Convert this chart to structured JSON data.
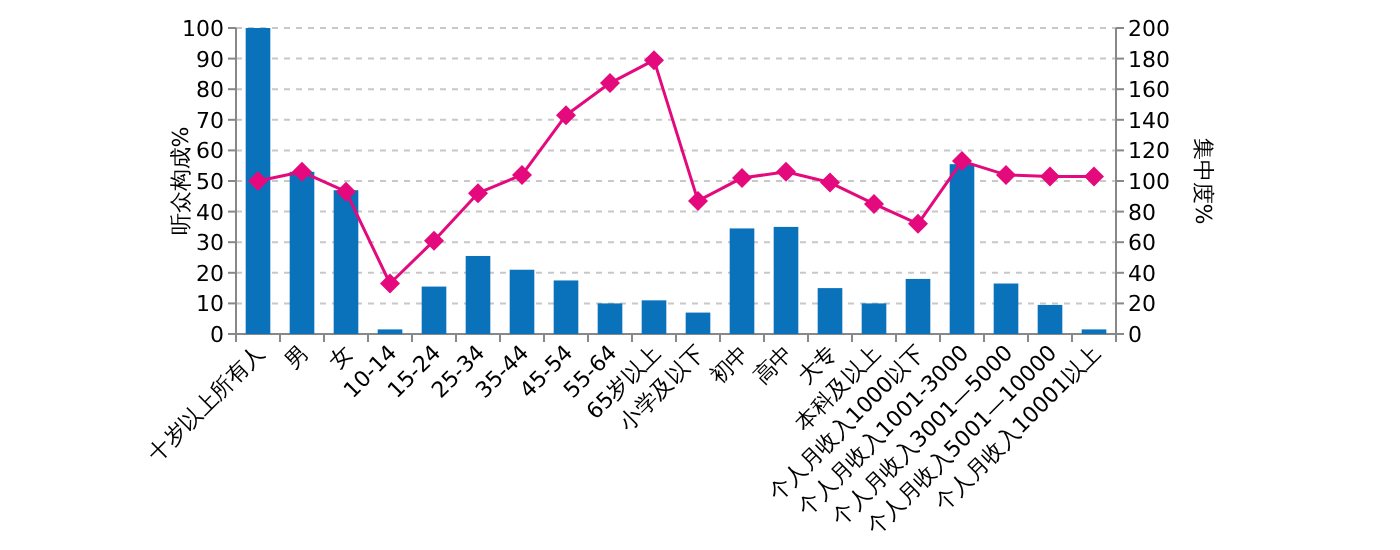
{
  "chart_data": {
    "type": "bar",
    "ylabel": "听众构成%",
    "y2label": "集中度%",
    "categories": [
      "十岁以上所有人",
      "男",
      "女",
      "10-14",
      "15-24",
      "25-34",
      "35-44",
      "45-54",
      "55-64",
      "65岁以上",
      "小学及以下",
      "初中",
      "高中",
      "大专",
      "本科及以上",
      "个人月收入1000以下",
      "个人月收入1001-3000",
      "个人月收入3001—5000",
      "个人月收入5001—10000",
      "个人月收入10001以上"
    ],
    "series": [
      {
        "color": "#0a72bb",
        "values": [
          100,
          53,
          47,
          1.5,
          15.5,
          25.5,
          21,
          17.5,
          10,
          11,
          7,
          34.5,
          35,
          15,
          10,
          18,
          55.5,
          16.5,
          9.5,
          1.5
        ]
      },
      {
        "type": "line",
        "axis": "y2",
        "color": "#e4097d",
        "marker": "diamond",
        "values": [
          100,
          106,
          93,
          33,
          61,
          92,
          104,
          143,
          164,
          179,
          87,
          102,
          106,
          99,
          85,
          72,
          113,
          104,
          103,
          103
        ]
      }
    ],
    "ylim": [
      0,
      100
    ],
    "yticks": [
      0,
      10,
      20,
      30,
      40,
      50,
      60,
      70,
      80,
      90,
      100
    ],
    "y2lim": [
      0,
      200
    ],
    "y2ticks": [
      0,
      20,
      40,
      60,
      80,
      100,
      120,
      140,
      160,
      180,
      200
    ],
    "grid": "y"
  }
}
